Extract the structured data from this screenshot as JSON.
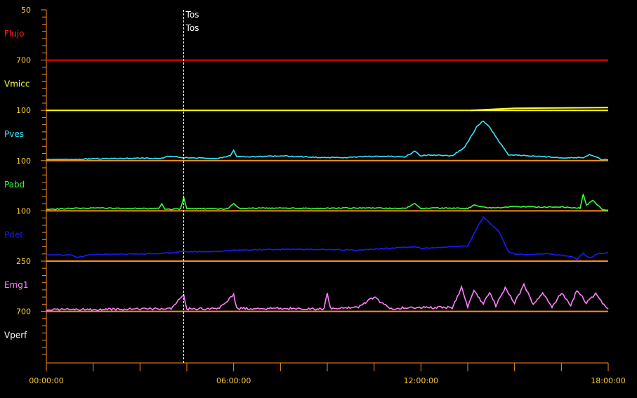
{
  "chart_data": {
    "type": "line",
    "title": "",
    "x_axis": {
      "ticks": [
        "00:00:00",
        "06:00:00",
        "12:00:00",
        "18:00:00"
      ],
      "range_hours": [
        0,
        18
      ]
    },
    "marker": {
      "label": "Tos",
      "repeat_label": "Tos",
      "time_hours": 4.4
    },
    "channels": [
      {
        "name": "Flujo",
        "scale_top": "50",
        "color": "#ff2020",
        "baseline_color": "#ff0000"
      },
      {
        "name": "Vmicc",
        "scale_top": "700",
        "color": "#ffff40",
        "baseline_color": "#ffff00"
      },
      {
        "name": "Pves",
        "scale_top": "100",
        "color": "#33e6ff",
        "baseline_color": "#ff8c1a"
      },
      {
        "name": "Pabd",
        "scale_top": "100",
        "color": "#33ff33",
        "baseline_color": "#ff8c1a"
      },
      {
        "name": "Pdet",
        "scale_top": "100",
        "color": "#1a1aff",
        "baseline_color": "#ff8c1a"
      },
      {
        "name": "Emg1",
        "scale_top": "250",
        "color": "#ff80ff",
        "baseline_color": "#ff8c1a"
      },
      {
        "name": "Vperf",
        "scale_top": "700",
        "color": "#ffffff",
        "baseline_color": null
      }
    ],
    "series": [
      {
        "name": "Pves",
        "x_hours": [
          0,
          0.8,
          1.5,
          3,
          3.7,
          3.9,
          4.4,
          5.5,
          5.9,
          6.0,
          6.1,
          6.6,
          7.5,
          8.5,
          9.5,
          10.5,
          11.5,
          11.8,
          12,
          12.3,
          13,
          13.4,
          13.8,
          14,
          14.2,
          14.5,
          14.8,
          15.5,
          16.5,
          17.2,
          17.4,
          17.6,
          17.8,
          18
        ],
        "y_offset": [
          2,
          2,
          4,
          5,
          5,
          10,
          6,
          5,
          10,
          22,
          8,
          8,
          10,
          7,
          6,
          9,
          8,
          20,
          10,
          12,
          10,
          28,
          72,
          83,
          70,
          40,
          12,
          10,
          6,
          6,
          12,
          8,
          2,
          2
        ]
      },
      {
        "name": "Pabd",
        "x_hours": [
          0,
          0.7,
          1.5,
          2.5,
          3.6,
          3.7,
          3.8,
          4.3,
          4.4,
          4.5,
          5.8,
          6.0,
          6.2,
          7.5,
          8.5,
          9.5,
          10.5,
          11.5,
          11.8,
          12,
          12.5,
          13.5,
          13.7,
          14,
          14.3,
          15,
          16,
          16.5,
          17.1,
          17.2,
          17.3,
          17.5,
          17.7,
          17.8,
          18
        ],
        "y_offset": [
          3,
          5,
          6,
          5,
          5,
          14,
          3,
          4,
          28,
          5,
          4,
          16,
          5,
          6,
          5,
          6,
          6,
          5,
          15,
          5,
          6,
          5,
          12,
          8,
          6,
          9,
          8,
          8,
          6,
          35,
          12,
          22,
          10,
          3,
          2
        ]
      },
      {
        "name": "Pdet",
        "x_hours": [
          0,
          0.8,
          1.0,
          1.5,
          3,
          4,
          4.4,
          5.5,
          6,
          7,
          8,
          9,
          10,
          11,
          11.8,
          12,
          13,
          13.5,
          13.8,
          14.0,
          14.2,
          14.5,
          14.8,
          15,
          15.5,
          16,
          16.8,
          17.0,
          17.2,
          17.4,
          17.6,
          18
        ],
        "y_offset": [
          13,
          13,
          8,
          14,
          15,
          17,
          20,
          20,
          23,
          24,
          25,
          24,
          23,
          27,
          30,
          27,
          30,
          32,
          70,
          93,
          80,
          62,
          20,
          15,
          14,
          16,
          10,
          4,
          16,
          6,
          14,
          18
        ]
      },
      {
        "name": "Emg1",
        "x_hours": [
          0,
          1,
          2,
          3,
          4,
          4.4,
          4.5,
          5.5,
          6.0,
          6.1,
          7,
          8,
          8.9,
          9.0,
          9.1,
          10,
          10.5,
          11,
          12,
          13,
          13.3,
          13.5,
          13.7,
          14,
          14.2,
          14.4,
          14.7,
          15,
          15.3,
          15.6,
          15.9,
          16.2,
          16.5,
          16.8,
          17.0,
          17.3,
          17.6,
          17.9,
          18
        ],
        "y_offset": [
          3,
          4,
          4,
          5,
          5,
          36,
          5,
          6,
          34,
          6,
          6,
          6,
          5,
          40,
          6,
          8,
          30,
          6,
          8,
          8,
          50,
          10,
          45,
          15,
          40,
          12,
          50,
          18,
          55,
          15,
          40,
          10,
          38,
          12,
          45,
          18,
          36,
          10,
          5
        ]
      }
    ]
  }
}
